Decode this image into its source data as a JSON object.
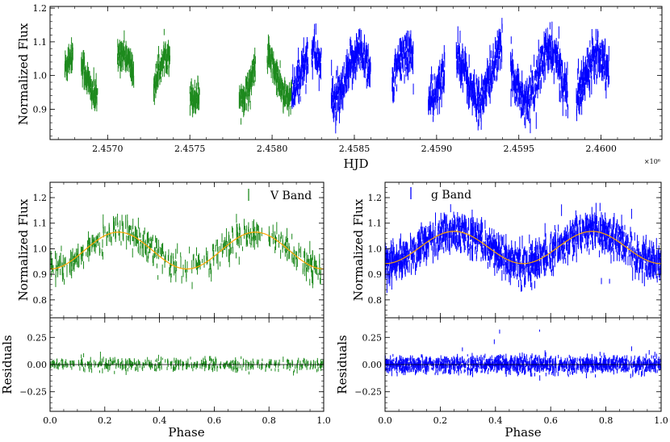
{
  "colors": {
    "v_band": "#1e8a1e",
    "g_band": "#0000ff",
    "model": "#ffa500",
    "axes": "#000000"
  },
  "chart_data": [
    {
      "id": "top",
      "type": "scatter",
      "xlabel": "HJD",
      "ylabel": "Normalized Flux",
      "x_scale_label": "×10⁶",
      "x_scale_factor": 1000000,
      "xlim": [
        2.45665,
        2.46037
      ],
      "ylim": [
        0.81,
        1.205
      ],
      "x_ticks": [
        2.457,
        2.4575,
        2.458,
        2.4585,
        2.459,
        2.4595,
        2.46
      ],
      "x_tick_labels": [
        "2.4570",
        "2.4575",
        "2.4580",
        "2.4585",
        "2.4590",
        "2.4595",
        "2.4600"
      ],
      "y_ticks": [
        0.9,
        1.0,
        1.1,
        1.2
      ],
      "y_tick_labels": [
        "0.9",
        "1.0",
        "1.1",
        "1.2"
      ],
      "series": [
        {
          "name": "V Band",
          "color": "#1e8a1e",
          "segments": [
            [
              2.45674,
              2.45679
            ],
            [
              2.45684,
              2.45694
            ],
            [
              2.45706,
              2.45716
            ],
            [
              2.45728,
              2.45738
            ],
            [
              2.4575,
              2.45756
            ],
            [
              2.4578,
              2.4579
            ],
            [
              2.45797,
              2.45812
            ]
          ],
          "amplitude": 0.075,
          "scatter": 0.045
        },
        {
          "name": "g Band",
          "color": "#0000ff",
          "segments": [
            [
              2.45812,
              2.45822
            ],
            [
              2.45824,
              2.4583
            ],
            [
              2.45836,
              2.4586
            ],
            [
              2.45873,
              2.45886
            ],
            [
              2.45895,
              2.45905
            ],
            [
              2.45912,
              2.4594
            ],
            [
              2.45945,
              2.4598
            ],
            [
              2.45985,
              2.46005
            ]
          ],
          "amplitude": 0.08,
          "scatter": 0.07
        }
      ]
    },
    {
      "id": "v-fold",
      "type": "scatter",
      "legend": "V Band",
      "xlabel": "",
      "ylabel": "Normalized Flux",
      "xlim": [
        0.0,
        1.0
      ],
      "ylim": [
        0.73,
        1.26
      ],
      "x_ticks": [
        0.0,
        0.2,
        0.4,
        0.6,
        0.8,
        1.0
      ],
      "y_ticks": [
        0.8,
        0.9,
        1.0,
        1.1,
        1.2
      ],
      "y_tick_labels": [
        "0.8",
        "0.9",
        "1.0",
        "1.1",
        "1.2"
      ],
      "model": {
        "mean": 0.993,
        "amplitude": 0.072,
        "phase_of_peak": 0.25
      },
      "n_points": 480,
      "scatter": 0.028
    },
    {
      "id": "v-resid",
      "type": "scatter",
      "xlabel": "Phase",
      "ylabel": "Residuals",
      "xlim": [
        0.0,
        1.0
      ],
      "ylim": [
        -0.43,
        0.43
      ],
      "x_ticks": [
        0.0,
        0.2,
        0.4,
        0.6,
        0.8,
        1.0
      ],
      "x_tick_labels": [
        "0.0",
        "0.2",
        "0.4",
        "0.6",
        "0.8",
        "1.0"
      ],
      "y_ticks": [
        -0.25,
        0.0,
        0.25
      ],
      "y_tick_labels": [
        "−0.25",
        "0.00",
        "0.25"
      ],
      "n_points": 480,
      "scatter": 0.026
    },
    {
      "id": "g-fold",
      "type": "scatter",
      "legend": "g Band",
      "xlabel": "",
      "ylabel": "Normalized Flux",
      "xlim": [
        0.0,
        1.0
      ],
      "ylim": [
        0.73,
        1.26
      ],
      "x_ticks": [
        0.0,
        0.2,
        0.4,
        0.6,
        0.8,
        1.0
      ],
      "y_ticks": [
        0.8,
        0.9,
        1.0,
        1.1,
        1.2
      ],
      "y_tick_labels": [
        "0.8",
        "0.9",
        "1.0",
        "1.1",
        "1.2"
      ],
      "model": {
        "mean": 1.005,
        "amplitude": 0.063,
        "phase_of_peak": 0.25
      },
      "n_points": 1600,
      "scatter": 0.034
    },
    {
      "id": "g-resid",
      "type": "scatter",
      "xlabel": "Phase",
      "ylabel": "Residuals",
      "xlim": [
        0.0,
        1.0
      ],
      "ylim": [
        -0.43,
        0.43
      ],
      "x_ticks": [
        0.0,
        0.2,
        0.4,
        0.6,
        0.8,
        1.0
      ],
      "x_tick_labels": [
        "0.0",
        "0.2",
        "0.4",
        "0.6",
        "0.8",
        "1.0"
      ],
      "y_ticks": [
        -0.25,
        0.0,
        0.25
      ],
      "y_tick_labels": [
        "−0.25",
        "0.00",
        "0.25"
      ],
      "n_points": 1600,
      "scatter": 0.034
    }
  ]
}
